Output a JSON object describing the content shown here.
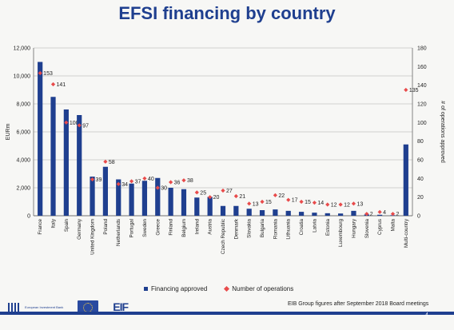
{
  "page": {
    "title": "EFSI financing by country"
  },
  "footer": {
    "note": "EIB Group figures after September 2018 Board meetings",
    "page_number": "4",
    "logos": [
      {
        "name": "european-investment-bank-logo",
        "text": "European Investment Bank"
      },
      {
        "name": "european-commission-logo",
        "text": "European Commission"
      },
      {
        "name": "eif-logo",
        "text": "EUROPEAN INVESTMENT FUND"
      }
    ]
  },
  "colors": {
    "bar": "#1f3f8f",
    "dot": "#e84b4b",
    "title": "#1f3f8f",
    "grid": "#a9a9a9"
  },
  "chart_data": {
    "type": "bar",
    "title": "EFSI financing by country",
    "ylabel": "EURm",
    "y2label": "# of operations approved",
    "ylim": [
      0,
      12000
    ],
    "y2lim": [
      0,
      180
    ],
    "yticks": [
      "0",
      "2,000",
      "4,000",
      "6,000",
      "8,000",
      "10,000",
      "12,000"
    ],
    "y2ticks": [
      "0",
      "20",
      "40",
      "60",
      "80",
      "100",
      "120",
      "140",
      "160",
      "180"
    ],
    "grid": true,
    "legend_position": "bottom",
    "categories": [
      "France",
      "Italy",
      "Spain",
      "Germany",
      "United Kingdom",
      "Poland",
      "Netherlands",
      "Portugal",
      "Sweden",
      "Greece",
      "Finland",
      "Belgium",
      "Ireland",
      "Austria",
      "Czech Republic",
      "Denmark",
      "Slovakia",
      "Bulgaria",
      "Romania",
      "Lithuania",
      "Croatia",
      "Latvia",
      "Estonia",
      "Luxembourg",
      "Hungary",
      "Slovenia",
      "Cyprus",
      "Malta",
      "Multi-country"
    ],
    "series": [
      {
        "name": "Financing approved",
        "kind": "bar",
        "axis": "left",
        "values": [
          11000,
          8500,
          7600,
          7200,
          2800,
          3500,
          2600,
          2300,
          2500,
          2700,
          2000,
          1900,
          1300,
          1350,
          700,
          700,
          500,
          400,
          450,
          350,
          280,
          220,
          180,
          160,
          350,
          90,
          70,
          40,
          5100
        ]
      },
      {
        "name": "Number of operations",
        "kind": "marker",
        "axis": "right",
        "values": [
          153,
          141,
          100,
          97,
          39,
          58,
          34,
          37,
          40,
          30,
          36,
          38,
          25,
          20,
          27,
          21,
          13,
          15,
          22,
          17,
          15,
          14,
          12,
          12,
          13,
          2,
          4,
          2,
          135
        ],
        "labels": [
          "153",
          "141",
          "100",
          "97",
          "39",
          "58",
          "34",
          "37",
          "40",
          "30",
          "36",
          "38",
          "25",
          "20",
          "27",
          "21",
          "13",
          "15",
          "22",
          "17",
          "15",
          "14",
          "12",
          "12",
          "13",
          "2",
          "4",
          "2",
          "135"
        ]
      }
    ]
  }
}
